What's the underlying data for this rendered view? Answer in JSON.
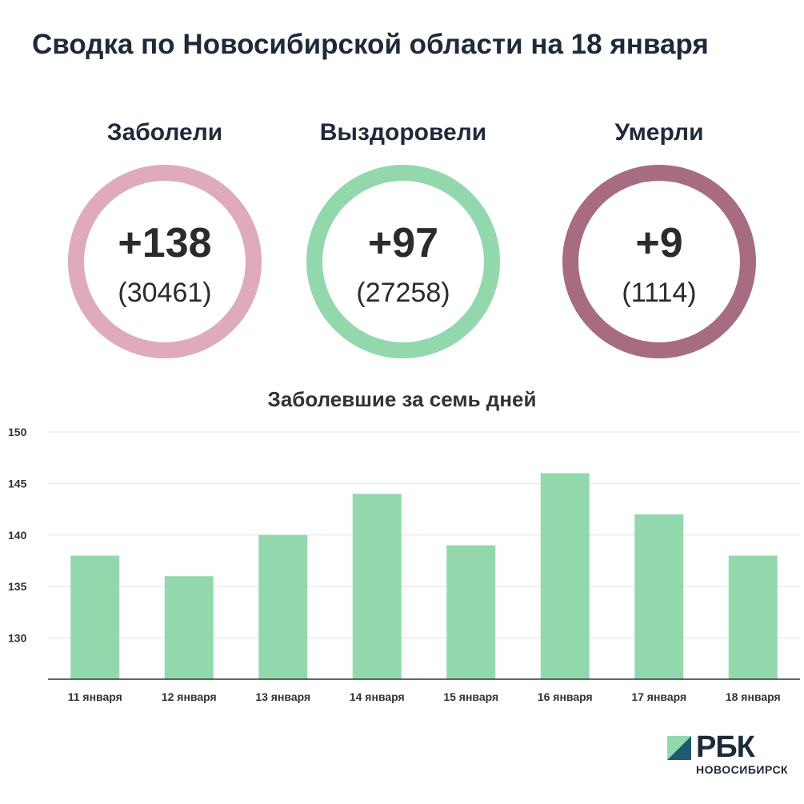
{
  "title": "Сводка по Новосибирской области на 18 января",
  "stats": [
    {
      "label": "Заболели",
      "main": "+138",
      "sub": "(30461)",
      "color": "#dfaabb"
    },
    {
      "label": "Выздоровели",
      "main": "+97",
      "sub": "(27258)",
      "color": "#93d8ad"
    },
    {
      "label": "Умерли",
      "main": "+9",
      "sub": "(1114)",
      "color": "#a86c82"
    }
  ],
  "chart_data": {
    "type": "bar",
    "title": "Заболевшие за семь дней",
    "categories": [
      "11 января",
      "12 января",
      "13 января",
      "14 января",
      "15 января",
      "16 января",
      "17 января",
      "18 января"
    ],
    "values": [
      138,
      136,
      140,
      144,
      139,
      146,
      142,
      138
    ],
    "ylim": [
      126,
      150
    ],
    "yticks": [
      130,
      135,
      140,
      145,
      150
    ],
    "bar_color": "#93d8ad",
    "grid": true
  },
  "logo": {
    "text": "РБК",
    "sub": "НОВОСИБИРСК"
  }
}
